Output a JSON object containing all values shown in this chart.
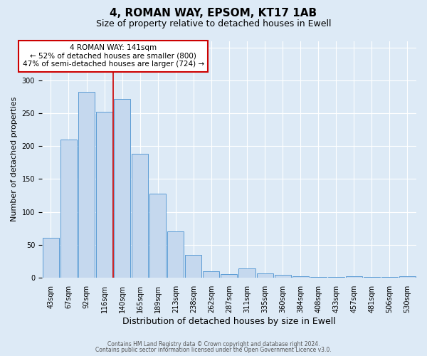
{
  "title": "4, ROMAN WAY, EPSOM, KT17 1AB",
  "subtitle": "Size of property relative to detached houses in Ewell",
  "xlabel": "Distribution of detached houses by size in Ewell",
  "ylabel": "Number of detached properties",
  "categories": [
    "43sqm",
    "67sqm",
    "92sqm",
    "116sqm",
    "140sqm",
    "165sqm",
    "189sqm",
    "213sqm",
    "238sqm",
    "262sqm",
    "287sqm",
    "311sqm",
    "335sqm",
    "360sqm",
    "384sqm",
    "408sqm",
    "433sqm",
    "457sqm",
    "481sqm",
    "506sqm",
    "530sqm"
  ],
  "values": [
    60,
    210,
    283,
    252,
    272,
    188,
    128,
    70,
    34,
    10,
    5,
    14,
    6,
    4,
    2,
    1,
    1,
    2,
    1,
    1,
    2
  ],
  "bar_color": "#c5d8ee",
  "bar_edge_color": "#5b9bd5",
  "vline_color": "#cc0000",
  "vline_x_index": 3.5,
  "annotation_text": "4 ROMAN WAY: 141sqm\n← 52% of detached houses are smaller (800)\n47% of semi-detached houses are larger (724) →",
  "annotation_box_facecolor": "#ffffff",
  "annotation_box_edgecolor": "#cc0000",
  "ylim_max": 360,
  "bg_color": "#ddeaf6",
  "footer_line1": "Contains HM Land Registry data © Crown copyright and database right 2024.",
  "footer_line2": "Contains public sector information licensed under the Open Government Licence v3.0.",
  "title_fontsize": 11,
  "subtitle_fontsize": 9,
  "xlabel_fontsize": 9,
  "ylabel_fontsize": 8,
  "tick_fontsize": 7,
  "annot_fontsize": 7.5,
  "footer_fontsize": 5.5
}
